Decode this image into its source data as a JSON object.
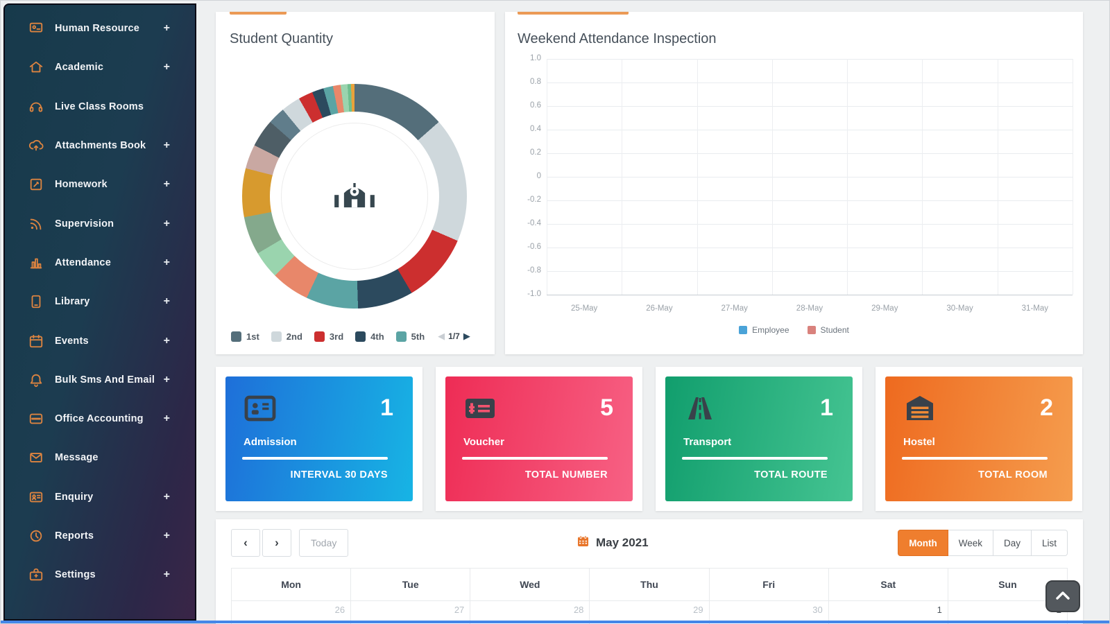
{
  "sidebar": {
    "expand_glyph": "+",
    "items": [
      {
        "label": "Human Resource",
        "icon": "human-resource-icon",
        "expandable": true
      },
      {
        "label": "Academic",
        "icon": "academic-icon",
        "expandable": true
      },
      {
        "label": "Live Class Rooms",
        "icon": "live-class-icon",
        "expandable": false
      },
      {
        "label": "Attachments Book",
        "icon": "attachments-icon",
        "expandable": true
      },
      {
        "label": "Homework",
        "icon": "homework-icon",
        "expandable": true
      },
      {
        "label": "Supervision",
        "icon": "supervision-icon",
        "expandable": true
      },
      {
        "label": "Attendance",
        "icon": "attendance-icon",
        "expandable": true
      },
      {
        "label": "Library",
        "icon": "library-icon",
        "expandable": true
      },
      {
        "label": "Events",
        "icon": "events-icon",
        "expandable": true
      },
      {
        "label": "Bulk Sms And Email",
        "icon": "bulk-sms-icon",
        "expandable": true
      },
      {
        "label": "Office Accounting",
        "icon": "office-accounting-icon",
        "expandable": true
      },
      {
        "label": "Message",
        "icon": "message-icon",
        "expandable": false
      },
      {
        "label": "Enquiry",
        "icon": "enquiry-icon",
        "expandable": true
      },
      {
        "label": "Reports",
        "icon": "reports-icon",
        "expandable": true
      },
      {
        "label": "Settings",
        "icon": "settings-icon",
        "expandable": true
      }
    ]
  },
  "chart_data": [
    {
      "type": "pie",
      "subtype": "donut",
      "title": "Student Quantity",
      "center_icon": "school-building",
      "slices": [
        {
          "color": "#546e7a",
          "deg": 48.6
        },
        {
          "color": "#cfd8dc",
          "deg": 64.8
        },
        {
          "color": "#cc2f2f",
          "deg": 36.0
        },
        {
          "color": "#2c4a5e",
          "deg": 28.8
        },
        {
          "color": "#5ba4a4",
          "deg": 27.0
        },
        {
          "color": "#e8876a",
          "deg": 19.8
        },
        {
          "color": "#9ad4ae",
          "deg": 14.4
        },
        {
          "color": "#84a98c",
          "deg": 19.8
        },
        {
          "color": "#d79a2e",
          "deg": 25.2
        },
        {
          "color": "#c9a8a2",
          "deg": 12.6
        },
        {
          "color": "#4e5e66",
          "deg": 14.4
        },
        {
          "color": "#607d8b",
          "deg": 9.0
        },
        {
          "color": "#cfd8dc",
          "deg": 10.0
        },
        {
          "color": "#cc2f2f",
          "deg": 7.5
        },
        {
          "color": "#2c4a5e",
          "deg": 6.0
        },
        {
          "color": "#5ba4a4",
          "deg": 5.0
        },
        {
          "color": "#e8876a",
          "deg": 4.0
        },
        {
          "color": "#9ad4ae",
          "deg": 3.5
        },
        {
          "color": "#6fbf8f",
          "deg": 1.8
        },
        {
          "color": "#e9a23b",
          "deg": 1.8
        }
      ],
      "legend": [
        {
          "label": "1st",
          "color": "#546e7a"
        },
        {
          "label": "2nd",
          "color": "#cfd8dc"
        },
        {
          "label": "3rd",
          "color": "#cc2f2f"
        },
        {
          "label": "4th",
          "color": "#2c4a5e"
        },
        {
          "label": "5th",
          "color": "#5ba4a4"
        }
      ],
      "legend_page": "1/7",
      "legend_position": "bottom"
    },
    {
      "type": "line",
      "title": "Weekend Attendance Inspection",
      "x": [
        "25-May",
        "26-May",
        "27-May",
        "28-May",
        "29-May",
        "30-May",
        "31-May"
      ],
      "ylim": [
        -1.0,
        1.0
      ],
      "y_ticks": [
        "1.0",
        "0.8",
        "0.6",
        "0.4",
        "0.2",
        "0",
        "-0.2",
        "-0.4",
        "-0.6",
        "-0.8",
        "-1.0"
      ],
      "grid": true,
      "legend_position": "bottom",
      "series": [
        {
          "name": "Employee",
          "color": "#4aa3d8",
          "values": []
        },
        {
          "name": "Student",
          "color": "#d9827d",
          "values": []
        }
      ],
      "note": "no data points plotted"
    }
  ],
  "stat_cards": [
    {
      "title": "Admission",
      "value": "1",
      "footer": "INTERVAL 30 DAYS",
      "icon": "id-card-icon",
      "color_from": "#1e6fd9",
      "color_to": "#17b4e4"
    },
    {
      "title": "Voucher",
      "value": "5",
      "footer": "TOTAL NUMBER",
      "icon": "money-check-icon",
      "color_from": "#ee2c55",
      "color_to": "#f76184"
    },
    {
      "title": "Transport",
      "value": "1",
      "footer": "TOTAL ROUTE",
      "icon": "road-icon",
      "color_from": "#119e6d",
      "color_to": "#45c492"
    },
    {
      "title": "Hostel",
      "value": "2",
      "footer": "TOTAL ROOM",
      "icon": "warehouse-icon",
      "color_from": "#ee6a1f",
      "color_to": "#f59d4e"
    }
  ],
  "calendar": {
    "prev_glyph": "‹",
    "next_glyph": "›",
    "today_label": "Today",
    "title": "May 2021",
    "views": [
      {
        "label": "Month",
        "active": true
      },
      {
        "label": "Week",
        "active": false
      },
      {
        "label": "Day",
        "active": false
      },
      {
        "label": "List",
        "active": false
      }
    ],
    "weekdays": [
      "Mon",
      "Tue",
      "Wed",
      "Thu",
      "Fri",
      "Sat",
      "Sun"
    ],
    "first_row": [
      {
        "day": "26",
        "muted": true
      },
      {
        "day": "27",
        "muted": true
      },
      {
        "day": "28",
        "muted": true
      },
      {
        "day": "29",
        "muted": true
      },
      {
        "day": "30",
        "muted": true
      },
      {
        "day": "1",
        "muted": false
      },
      {
        "day": "2",
        "muted": false
      }
    ]
  },
  "colors": {
    "accent_orange": "#eb9a55",
    "active_view_orange": "#ef7e2e",
    "sidebar_icon_orange": "#dd8440"
  }
}
